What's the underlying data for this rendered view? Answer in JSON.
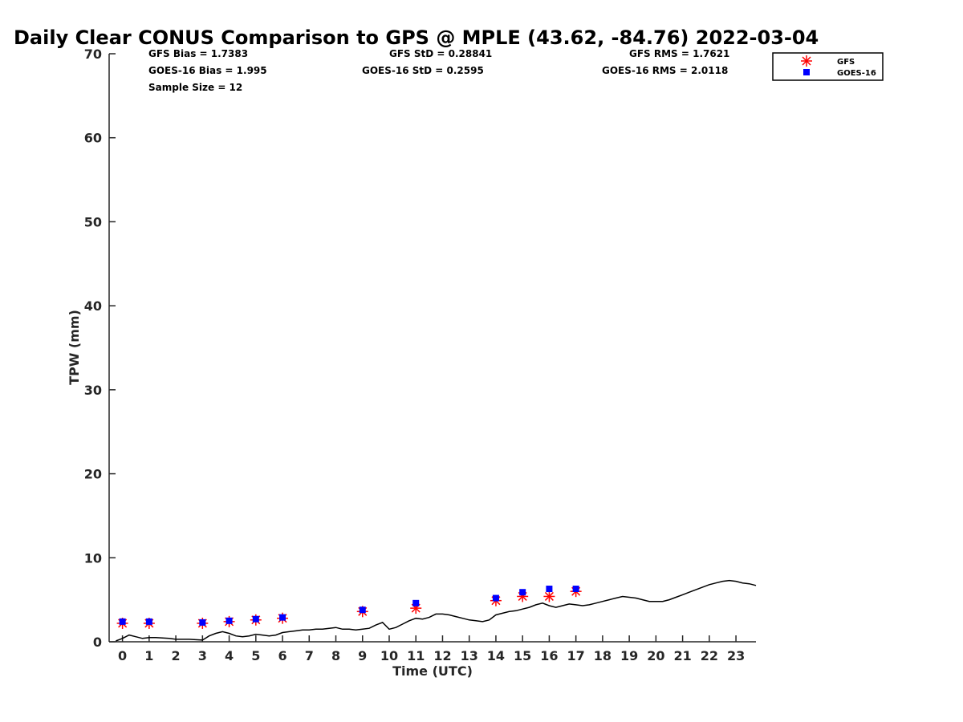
{
  "chart_data": {
    "type": "scatter",
    "title": "Daily Clear CONUS Comparison to GPS @ MPLE (43.62, -84.76) 2022-03-04",
    "xlabel": "Time (UTC)",
    "ylabel": "TPW (mm)",
    "xlim": [
      -0.5,
      23.75
    ],
    "ylim": [
      0,
      70
    ],
    "xticks": [
      0,
      1,
      2,
      3,
      4,
      5,
      6,
      7,
      8,
      9,
      10,
      11,
      12,
      13,
      14,
      15,
      16,
      17,
      18,
      19,
      20,
      21,
      22,
      23
    ],
    "yticks": [
      0,
      10,
      20,
      30,
      40,
      50,
      60,
      70
    ],
    "stats": {
      "gfs_bias": "GFS Bias = 1.7383",
      "goes_bias": "GOES-16 Bias = 1.995",
      "sample_size": "Sample Size = 12",
      "gfs_std": "GFS StD = 0.28841",
      "goes_std": "GOES-16 StD = 0.2595",
      "gfs_rms": "GFS RMS = 1.7621",
      "goes_rms": "GOES-16 RMS = 2.0118"
    },
    "legend": {
      "position": "top-right",
      "entries": [
        "GFS",
        "GOES-16"
      ]
    },
    "series": [
      {
        "name": "GPS",
        "style": "line",
        "color": "#000000",
        "x": [
          -0.25,
          0,
          0.25,
          0.5,
          0.75,
          1,
          1.25,
          1.5,
          1.75,
          2,
          2.25,
          2.5,
          2.75,
          3,
          3.25,
          3.5,
          3.75,
          4,
          4.25,
          4.5,
          4.75,
          5,
          5.25,
          5.5,
          5.75,
          6,
          6.25,
          6.5,
          6.75,
          7,
          7.25,
          7.5,
          7.75,
          8,
          8.25,
          8.5,
          8.75,
          9,
          9.25,
          9.5,
          9.75,
          10,
          10.25,
          10.5,
          10.75,
          11,
          11.25,
          11.5,
          11.75,
          12,
          12.25,
          12.5,
          12.75,
          13,
          13.25,
          13.5,
          13.75,
          14,
          14.25,
          14.5,
          14.75,
          15,
          15.25,
          15.5,
          15.75,
          16,
          16.25,
          16.5,
          16.75,
          17,
          17.25,
          17.5,
          17.75,
          18,
          18.25,
          18.5,
          18.75,
          19,
          19.25,
          19.5,
          19.75,
          20,
          20.25,
          20.5,
          20.75,
          21,
          21.25,
          21.5,
          21.75,
          22,
          22.25,
          22.5,
          22.75,
          23,
          23.25,
          23.5,
          23.75
        ],
        "values": [
          0.1,
          0.4,
          0.8,
          0.6,
          0.4,
          0.5,
          0.5,
          0.45,
          0.4,
          0.3,
          0.3,
          0.3,
          0.25,
          0.2,
          0.7,
          1.0,
          1.2,
          1.0,
          0.7,
          0.6,
          0.7,
          0.9,
          0.8,
          0.7,
          0.8,
          1.1,
          1.2,
          1.3,
          1.4,
          1.4,
          1.5,
          1.5,
          1.6,
          1.7,
          1.5,
          1.5,
          1.4,
          1.5,
          1.6,
          2.0,
          2.3,
          1.5,
          1.7,
          2.1,
          2.5,
          2.8,
          2.7,
          2.9,
          3.3,
          3.3,
          3.2,
          3.0,
          2.8,
          2.6,
          2.5,
          2.4,
          2.6,
          3.2,
          3.4,
          3.6,
          3.7,
          3.9,
          4.1,
          4.4,
          4.6,
          4.3,
          4.1,
          4.3,
          4.5,
          4.4,
          4.3,
          4.4,
          4.6,
          4.8,
          5.0,
          5.2,
          5.4,
          5.3,
          5.2,
          5.0,
          4.8,
          4.8,
          4.8,
          5.0,
          5.3,
          5.6,
          5.9,
          6.2,
          6.5,
          6.8,
          7.0,
          7.2,
          7.3,
          7.2,
          7.0,
          6.9,
          6.7
        ]
      },
      {
        "name": "GFS",
        "style": "asterisk",
        "color": "#ff0000",
        "x": [
          0,
          1,
          3,
          4,
          5,
          6,
          9,
          11,
          14,
          15,
          16,
          17
        ],
        "values": [
          2.2,
          2.2,
          2.2,
          2.4,
          2.6,
          2.8,
          3.6,
          4.0,
          4.9,
          5.4,
          5.4,
          6.0
        ]
      },
      {
        "name": "GOES-16",
        "style": "square",
        "color": "#0000ff",
        "x": [
          0,
          1,
          3,
          4,
          5,
          6,
          9,
          11,
          14,
          15,
          16,
          17
        ],
        "values": [
          2.4,
          2.4,
          2.3,
          2.5,
          2.7,
          2.9,
          3.8,
          4.6,
          5.2,
          5.9,
          6.3,
          6.3
        ]
      }
    ]
  }
}
